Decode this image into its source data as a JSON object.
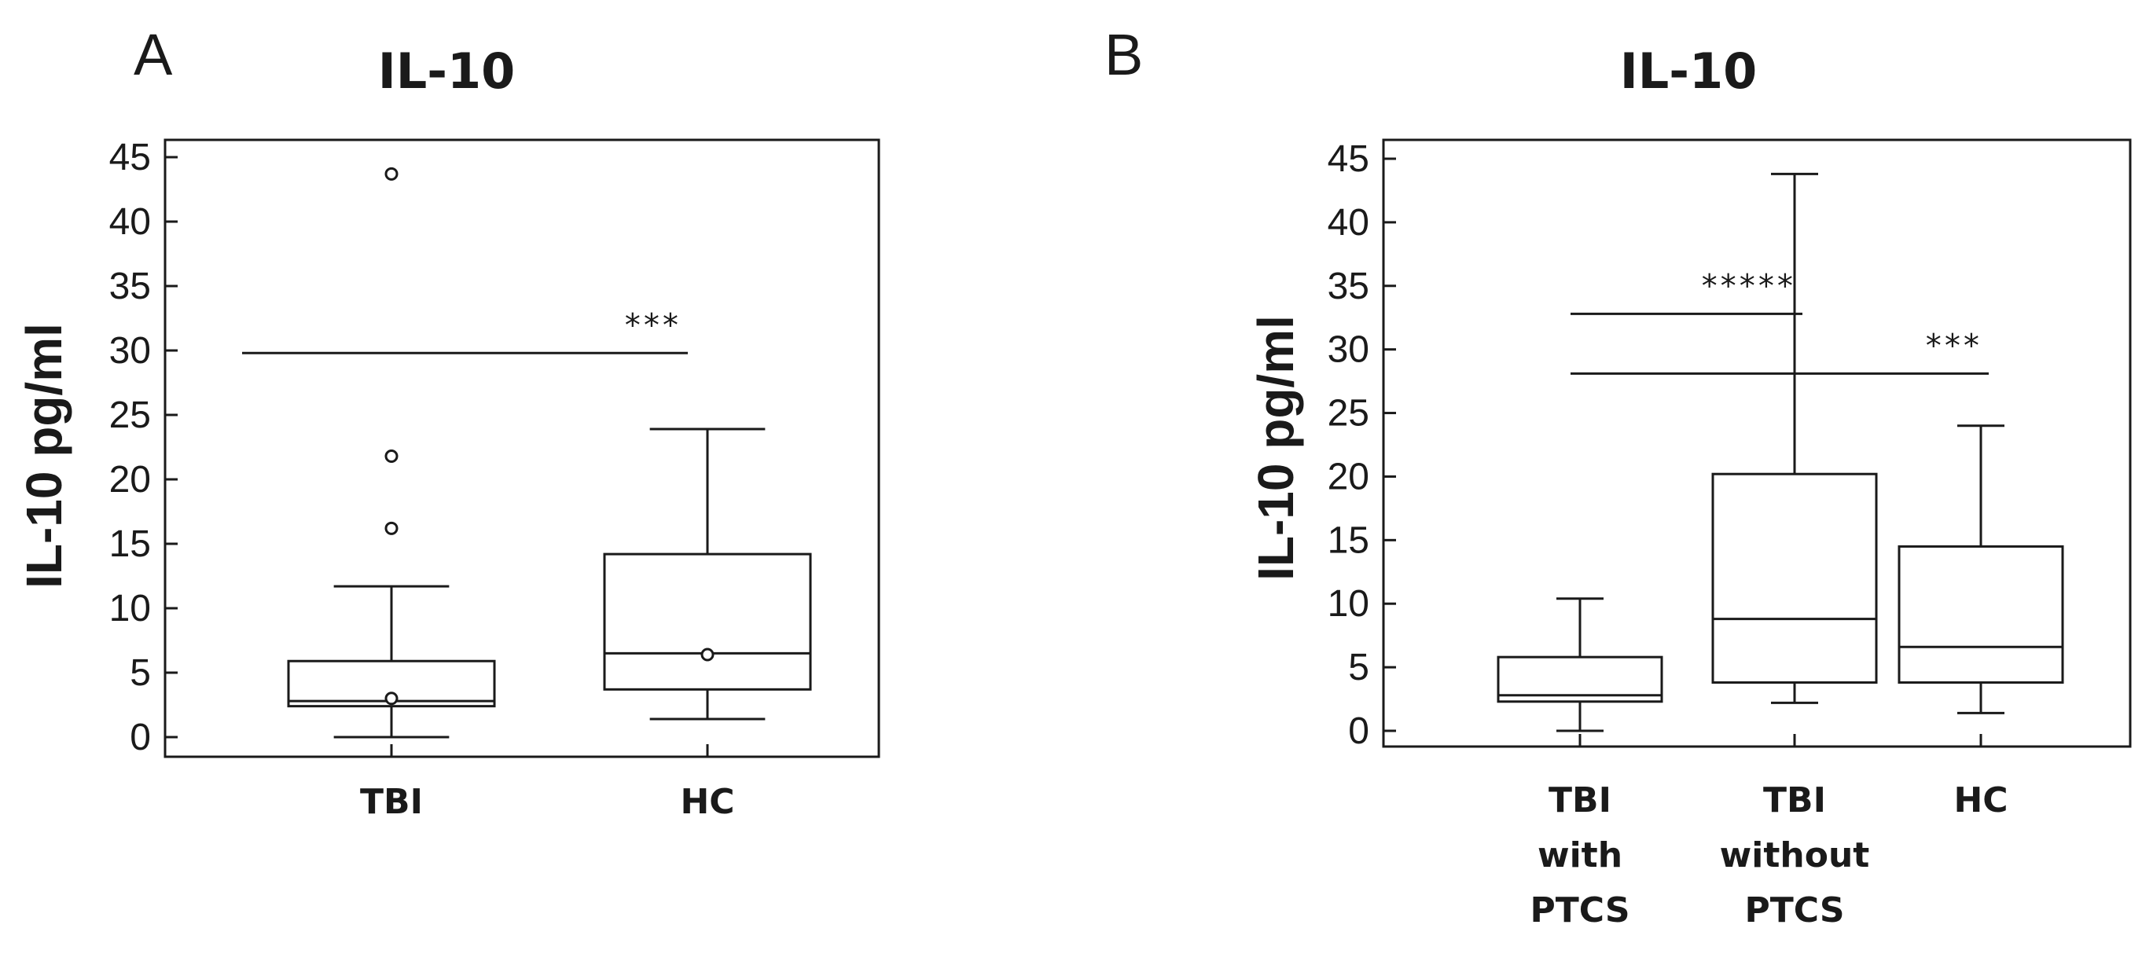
{
  "chart_data": [
    {
      "panel": "A",
      "type": "box",
      "title": "IL-10",
      "ylabel": "IL-10 pg/ml",
      "xlabel": "",
      "ylim": [
        -1,
        47
      ],
      "yticks": [
        0,
        5,
        10,
        15,
        20,
        25,
        30,
        35,
        40,
        45
      ],
      "grid": false,
      "groups": [
        {
          "label": [
            "TBI"
          ],
          "min": 0,
          "q1": 2.4,
          "median": 2.8,
          "q3": 5.9,
          "max": 11.7,
          "mean": 3.0,
          "outliers": [
            16.2,
            21.8,
            43.7
          ]
        },
        {
          "label": [
            "HC"
          ],
          "min": 1.4,
          "q1": 3.7,
          "median": 6.5,
          "q3": 14.2,
          "max": 23.9,
          "mean": 6.4,
          "outliers": []
        }
      ],
      "significance": [
        {
          "from": 0,
          "to": 1,
          "y": 29.8,
          "label": "***"
        }
      ]
    },
    {
      "panel": "B",
      "type": "box",
      "title": "IL-10",
      "ylabel": "IL-10 pg/ml",
      "xlabel": "",
      "ylim": [
        -1.5,
        47
      ],
      "yticks": [
        0,
        5,
        10,
        15,
        20,
        25,
        30,
        35,
        40,
        45
      ],
      "grid": false,
      "groups": [
        {
          "label": [
            "TBI",
            "with",
            "PTCS"
          ],
          "min": 0,
          "q1": 2.3,
          "median": 2.8,
          "q3": 5.8,
          "max": 10.4,
          "outliers": []
        },
        {
          "label": [
            "TBI",
            "without",
            "PTCS"
          ],
          "min": 2.2,
          "q1": 3.8,
          "median": 8.8,
          "q3": 20.2,
          "max": 43.8,
          "outliers": []
        },
        {
          "label": [
            "HC"
          ],
          "min": 1.4,
          "q1": 3.8,
          "median": 6.6,
          "q3": 14.5,
          "max": 24.0,
          "outliers": []
        }
      ],
      "significance": [
        {
          "from": 0,
          "to": 1,
          "y": 32.8,
          "label": "*****"
        },
        {
          "from": 0,
          "to": 2,
          "y": 28.1,
          "label": "***"
        }
      ]
    }
  ]
}
